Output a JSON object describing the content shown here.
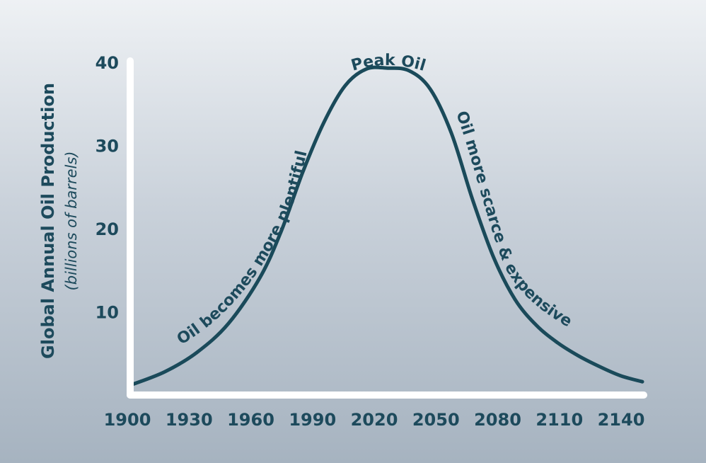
{
  "colors": {
    "curve": "#1a4a5a",
    "text": "#1d4a5c",
    "axis": "#ffffff"
  },
  "chart_data": {
    "type": "line",
    "title": "",
    "ylabel": "Global Annual Oil Production",
    "ylabel_sub": "(billions of barrels)",
    "xlabel": "",
    "x_ticks": [
      1900,
      1930,
      1960,
      1990,
      2020,
      2050,
      2080,
      2110,
      2140
    ],
    "y_ticks": [
      10,
      20,
      30,
      40
    ],
    "xlim": [
      1900,
      2140
    ],
    "ylim": [
      0,
      40
    ],
    "grid": false,
    "legend": "none",
    "series": [
      {
        "x": [
          1900,
          1915,
          1930,
          1945,
          1960,
          1970,
          1980,
          1990,
          2000,
          2010,
          2020,
          2030,
          2040,
          2050,
          2060,
          2070,
          2080,
          2090,
          2100,
          2110,
          2120,
          2130,
          2140
        ],
        "y": [
          1.3,
          2.8,
          5.1,
          8.6,
          14.2,
          19.8,
          26.8,
          32.8,
          37.2,
          39.2,
          39.3,
          39.0,
          36.8,
          31.5,
          23.5,
          16.5,
          11.5,
          8.4,
          6.3,
          4.7,
          3.4,
          2.3,
          1.6
        ]
      }
    ],
    "annotations": [
      {
        "text": "Peak Oil"
      },
      {
        "text": "Oil becomes more plentiful"
      },
      {
        "text": "Oil more scarce & expensive"
      }
    ]
  }
}
